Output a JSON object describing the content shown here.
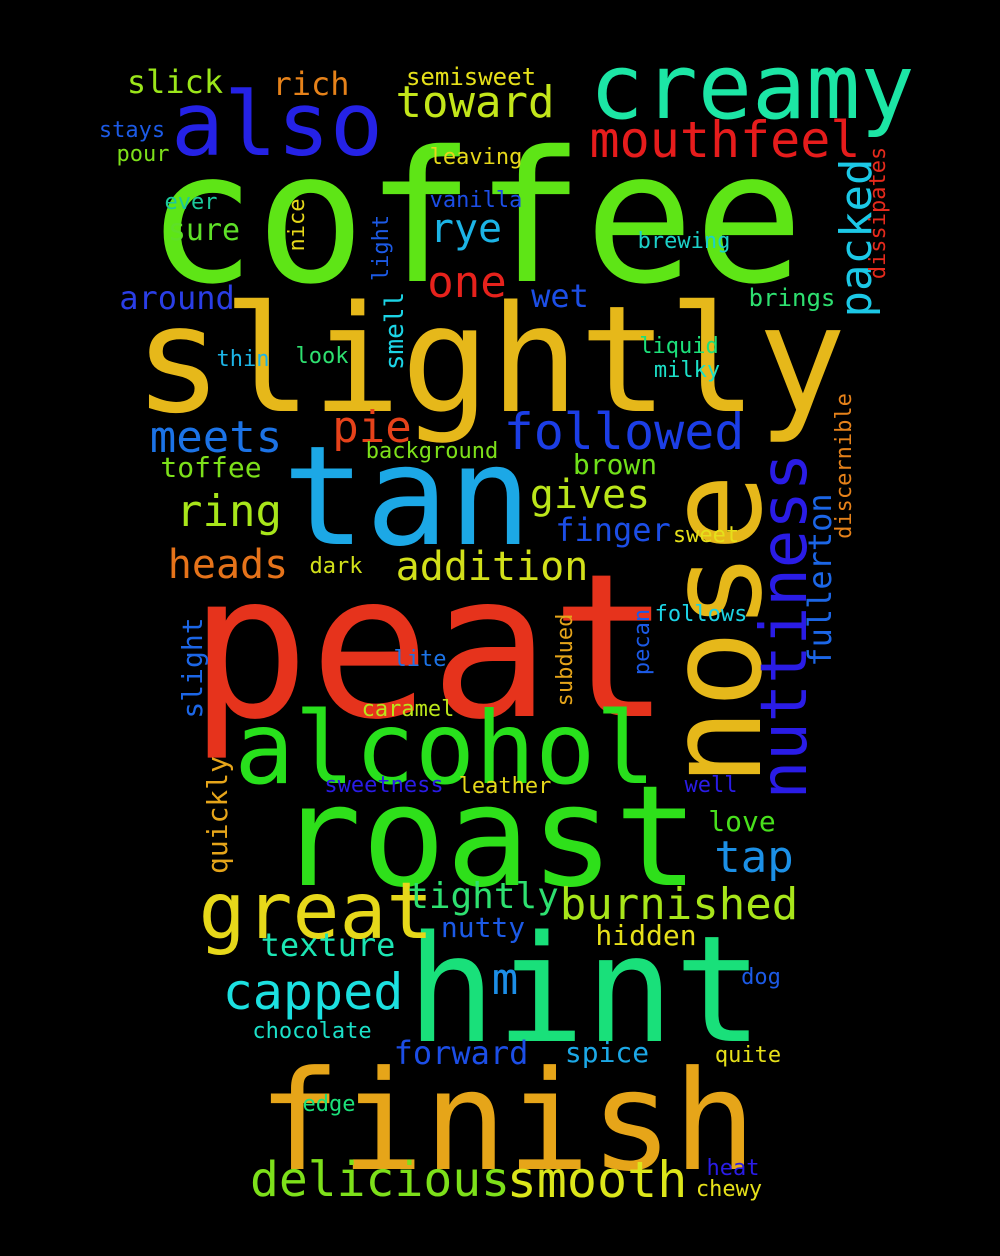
{
  "words": [
    {
      "text": "coffee",
      "color": "#5ee516"
    },
    {
      "text": "peat",
      "color": "#e6331c"
    },
    {
      "text": "slightly",
      "color": "#e6b81a"
    },
    {
      "text": "hint",
      "color": "#19e07a"
    },
    {
      "text": "roast",
      "color": "#2ee01a"
    },
    {
      "text": "tan",
      "color": "#1ca8e6"
    },
    {
      "text": "finish",
      "color": "#e6a519"
    },
    {
      "text": "nose",
      "color": "#e6b81a"
    },
    {
      "text": "alcohol",
      "color": "#28e01c"
    },
    {
      "text": "creamy",
      "color": "#1ce6a5"
    },
    {
      "text": "also",
      "color": "#2522e6"
    },
    {
      "text": "great",
      "color": "#e6d81a"
    },
    {
      "text": "nuttiness",
      "color": "#2a1ce6"
    },
    {
      "text": "smooth",
      "color": "#dce61a"
    },
    {
      "text": "delicious",
      "color": "#7de01a"
    },
    {
      "text": "mouthfeel",
      "color": "#e61c1c"
    },
    {
      "text": "followed",
      "color": "#1c3ee6"
    },
    {
      "text": "capped",
      "color": "#1ce0e0"
    },
    {
      "text": "burnished",
      "color": "#a8e61a"
    },
    {
      "text": "toward",
      "color": "#c3e61a"
    },
    {
      "text": "packed",
      "color": "#1cc8e6"
    },
    {
      "text": "addition",
      "color": "#d2e01a"
    },
    {
      "text": "meets",
      "color": "#1c73e6"
    },
    {
      "text": "ring",
      "color": "#a8e61a"
    },
    {
      "text": "gives",
      "color": "#bbe61a"
    },
    {
      "text": "heads",
      "color": "#e6731a"
    },
    {
      "text": "one",
      "color": "#e6221c"
    },
    {
      "text": "pie",
      "color": "#e6421a"
    },
    {
      "text": "rye",
      "color": "#1cb4e6"
    },
    {
      "text": "tightly",
      "color": "#2ee070"
    },
    {
      "text": "tap",
      "color": "#1c90e6"
    },
    {
      "text": "m",
      "color": "#1c8ee6"
    },
    {
      "text": "fullerton",
      "color": "#1c66e6"
    },
    {
      "text": "texture",
      "color": "#1ce6b4"
    },
    {
      "text": "forward",
      "color": "#1c4ee6"
    },
    {
      "text": "finger",
      "color": "#1c4ee6"
    },
    {
      "text": "slick",
      "color": "#9be61a"
    },
    {
      "text": "rich",
      "color": "#e6821a"
    },
    {
      "text": "around",
      "color": "#2a3ee6"
    },
    {
      "text": "toffee",
      "color": "#7de01a"
    },
    {
      "text": "brown",
      "color": "#70e01a"
    },
    {
      "text": "wet",
      "color": "#1c4ee6"
    },
    {
      "text": "sure",
      "color": "#5ee028"
    },
    {
      "text": "hidden",
      "color": "#e6e01a"
    },
    {
      "text": "nutty",
      "color": "#1c5ae6"
    },
    {
      "text": "spice",
      "color": "#1ca8e6"
    },
    {
      "text": "love",
      "color": "#48e01c"
    },
    {
      "text": "smell",
      "color": "#1cd4e6"
    },
    {
      "text": "quickly",
      "color": "#e6a51a"
    },
    {
      "text": "slight",
      "color": "#1c66e6"
    },
    {
      "text": "subdued",
      "color": "#e6a51a"
    },
    {
      "text": "brings",
      "color": "#2ee070"
    },
    {
      "text": "semisweet",
      "color": "#e6e01a"
    },
    {
      "text": "leaving",
      "color": "#e6d81a"
    },
    {
      "text": "vanilla",
      "color": "#1c4ee6"
    },
    {
      "text": "brewing",
      "color": "#1cd0c8"
    },
    {
      "text": "dissipates",
      "color": "#e62a1c"
    },
    {
      "text": "discernible",
      "color": "#e6821a"
    },
    {
      "text": "stays",
      "color": "#1c5ae6"
    },
    {
      "text": "pour",
      "color": "#7de01a"
    },
    {
      "text": "ever",
      "color": "#1cc89b"
    },
    {
      "text": "nice",
      "color": "#e6d81a"
    },
    {
      "text": "light",
      "color": "#1c5ae6"
    },
    {
      "text": "thin",
      "color": "#1cb4e6"
    },
    {
      "text": "look",
      "color": "#2ee070"
    },
    {
      "text": "liquid",
      "color": "#1ce07a"
    },
    {
      "text": "milky",
      "color": "#1ce0c8"
    },
    {
      "text": "background",
      "color": "#7de01a"
    },
    {
      "text": "sweet",
      "color": "#e6e01a"
    },
    {
      "text": "dark",
      "color": "#d2e01a"
    },
    {
      "text": "pecan",
      "color": "#1c5ae6"
    },
    {
      "text": "follows",
      "color": "#1cd4e6"
    },
    {
      "text": "lite",
      "color": "#1c73e6"
    },
    {
      "text": "caramel",
      "color": "#bbe61a"
    },
    {
      "text": "sweetness",
      "color": "#2a1ce6"
    },
    {
      "text": "leather",
      "color": "#e6d81a"
    },
    {
      "text": "well",
      "color": "#2a1ce6"
    },
    {
      "text": "dog",
      "color": "#1c5ae6"
    },
    {
      "text": "chocolate",
      "color": "#1ce0c8"
    },
    {
      "text": "quite",
      "color": "#e6e01a"
    },
    {
      "text": "edge",
      "color": "#1ce07a"
    },
    {
      "text": "heat",
      "color": "#2a1ce6"
    },
    {
      "text": "chewy",
      "color": "#e6e01a"
    }
  ]
}
